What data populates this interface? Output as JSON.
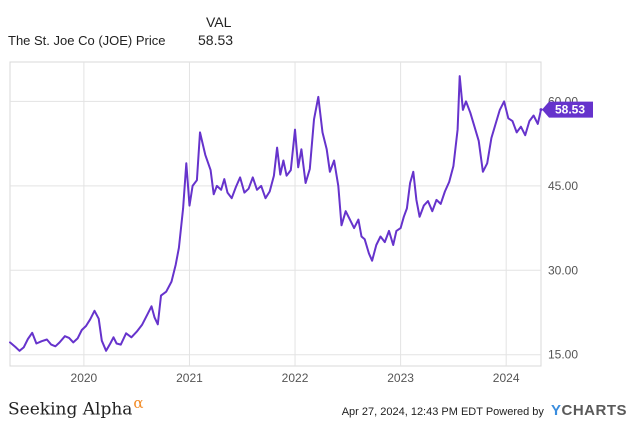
{
  "legend": {
    "header": "VAL",
    "series_name": "The St. Joe Co (JOE) Price",
    "series_value": "58.53"
  },
  "footer": {
    "brand": "Seeking Alpha",
    "brand_symbol": "α",
    "timestamp": "Apr 27, 2024, 12:43 PM EDT Powered by",
    "provider_y": "Y",
    "provider_rest": "CHARTS"
  },
  "colors": {
    "line": "#6633cc",
    "badge": "#6633cc",
    "brand_accent": "#f28c28",
    "ycharts_y": "#3a8dde"
  },
  "chart_data": {
    "type": "line",
    "title": "",
    "xlabel": "",
    "ylabel": "",
    "x_tick_labels": [
      "2020",
      "2021",
      "2022",
      "2023",
      "2024"
    ],
    "y_tick_labels": [
      "15.00",
      "30.00",
      "45.00",
      "60.00"
    ],
    "ylim": [
      13,
      67
    ],
    "xlim": [
      2019.3,
      2024.33
    ],
    "grid": true,
    "last_value_label": "58.53",
    "series": [
      {
        "name": "The St. Joe Co (JOE) Price",
        "points": [
          [
            2019.3,
            17.2
          ],
          [
            2019.35,
            16.4
          ],
          [
            2019.39,
            15.7
          ],
          [
            2019.43,
            16.3
          ],
          [
            2019.47,
            17.8
          ],
          [
            2019.51,
            18.9
          ],
          [
            2019.55,
            17.0
          ],
          [
            2019.6,
            17.4
          ],
          [
            2019.65,
            17.7
          ],
          [
            2019.69,
            16.8
          ],
          [
            2019.73,
            16.5
          ],
          [
            2019.77,
            17.2
          ],
          [
            2019.82,
            18.3
          ],
          [
            2019.86,
            18.0
          ],
          [
            2019.9,
            17.2
          ],
          [
            2019.94,
            17.9
          ],
          [
            2019.98,
            19.4
          ],
          [
            2020.02,
            20.1
          ],
          [
            2020.06,
            21.3
          ],
          [
            2020.1,
            22.8
          ],
          [
            2020.14,
            21.4
          ],
          [
            2020.17,
            17.5
          ],
          [
            2020.21,
            15.7
          ],
          [
            2020.25,
            17.0
          ],
          [
            2020.28,
            18.1
          ],
          [
            2020.31,
            17.0
          ],
          [
            2020.35,
            16.8
          ],
          [
            2020.4,
            18.8
          ],
          [
            2020.45,
            18.1
          ],
          [
            2020.5,
            19.1
          ],
          [
            2020.55,
            20.3
          ],
          [
            2020.6,
            22.1
          ],
          [
            2020.64,
            23.6
          ],
          [
            2020.67,
            21.6
          ],
          [
            2020.7,
            20.4
          ],
          [
            2020.73,
            25.5
          ],
          [
            2020.78,
            26.2
          ],
          [
            2020.83,
            28.0
          ],
          [
            2020.87,
            31.0
          ],
          [
            2020.9,
            34.0
          ],
          [
            2020.94,
            41.0
          ],
          [
            2020.97,
            49.0
          ],
          [
            2021.0,
            41.5
          ],
          [
            2021.03,
            45.0
          ],
          [
            2021.07,
            46.0
          ],
          [
            2021.1,
            54.5
          ],
          [
            2021.15,
            50.5
          ],
          [
            2021.2,
            47.8
          ],
          [
            2021.23,
            43.5
          ],
          [
            2021.26,
            45.0
          ],
          [
            2021.3,
            44.3
          ],
          [
            2021.33,
            46.2
          ],
          [
            2021.36,
            43.8
          ],
          [
            2021.4,
            42.8
          ],
          [
            2021.44,
            44.8
          ],
          [
            2021.48,
            46.5
          ],
          [
            2021.52,
            43.8
          ],
          [
            2021.56,
            44.5
          ],
          [
            2021.6,
            46.5
          ],
          [
            2021.64,
            44.3
          ],
          [
            2021.68,
            45.0
          ],
          [
            2021.72,
            42.8
          ],
          [
            2021.76,
            44.0
          ],
          [
            2021.8,
            46.8
          ],
          [
            2021.83,
            51.8
          ],
          [
            2021.86,
            47.0
          ],
          [
            2021.89,
            49.5
          ],
          [
            2021.92,
            46.8
          ],
          [
            2021.96,
            47.8
          ],
          [
            2022.0,
            55.0
          ],
          [
            2022.03,
            48.3
          ],
          [
            2022.06,
            51.5
          ],
          [
            2022.1,
            45.5
          ],
          [
            2022.14,
            48.0
          ],
          [
            2022.18,
            56.8
          ],
          [
            2022.22,
            60.8
          ],
          [
            2022.26,
            54.5
          ],
          [
            2022.3,
            51.5
          ],
          [
            2022.33,
            47.5
          ],
          [
            2022.37,
            49.5
          ],
          [
            2022.41,
            45.0
          ],
          [
            2022.44,
            38.0
          ],
          [
            2022.48,
            40.5
          ],
          [
            2022.52,
            39.0
          ],
          [
            2022.56,
            37.5
          ],
          [
            2022.6,
            39.0
          ],
          [
            2022.63,
            36.0
          ],
          [
            2022.66,
            35.5
          ],
          [
            2022.7,
            33.0
          ],
          [
            2022.73,
            31.7
          ],
          [
            2022.77,
            34.5
          ],
          [
            2022.81,
            36.0
          ],
          [
            2022.85,
            35.0
          ],
          [
            2022.89,
            37.0
          ],
          [
            2022.93,
            34.5
          ],
          [
            2022.96,
            37.0
          ],
          [
            2023.0,
            37.5
          ],
          [
            2023.03,
            39.5
          ],
          [
            2023.06,
            41.0
          ],
          [
            2023.09,
            45.5
          ],
          [
            2023.12,
            47.5
          ],
          [
            2023.15,
            42.5
          ],
          [
            2023.18,
            39.5
          ],
          [
            2023.22,
            41.5
          ],
          [
            2023.26,
            42.3
          ],
          [
            2023.3,
            40.5
          ],
          [
            2023.34,
            42.5
          ],
          [
            2023.38,
            41.8
          ],
          [
            2023.42,
            44.0
          ],
          [
            2023.46,
            45.7
          ],
          [
            2023.5,
            48.5
          ],
          [
            2023.54,
            55.0
          ],
          [
            2023.56,
            64.5
          ],
          [
            2023.59,
            58.5
          ],
          [
            2023.62,
            60.0
          ],
          [
            2023.66,
            58.0
          ],
          [
            2023.7,
            55.5
          ],
          [
            2023.74,
            53.0
          ],
          [
            2023.78,
            47.5
          ],
          [
            2023.82,
            49.0
          ],
          [
            2023.86,
            53.5
          ],
          [
            2023.9,
            56.0
          ],
          [
            2023.94,
            58.5
          ],
          [
            2023.98,
            60.0
          ],
          [
            2024.02,
            57.0
          ],
          [
            2024.06,
            56.5
          ],
          [
            2024.1,
            54.5
          ],
          [
            2024.14,
            55.5
          ],
          [
            2024.18,
            54.0
          ],
          [
            2024.22,
            56.5
          ],
          [
            2024.26,
            57.5
          ],
          [
            2024.3,
            56.0
          ],
          [
            2024.33,
            58.53
          ]
        ]
      }
    ]
  }
}
